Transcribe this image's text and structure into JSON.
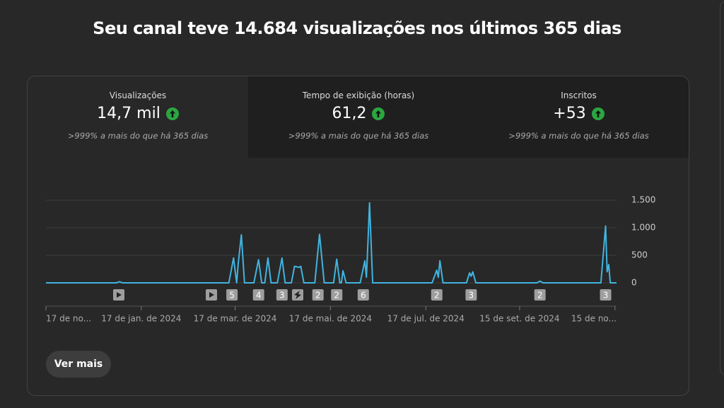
{
  "header": {
    "title": "Seu canal teve 14.684 visualizações nos últimos 365 dias"
  },
  "tabs": [
    {
      "label": "Visualizações",
      "value": "14,7 mil",
      "comparison": ">999% a mais do que há 365 dias"
    },
    {
      "label": "Tempo de exibição (horas)",
      "value": "61,2",
      "comparison": ">999% a mais do que há 365 dias"
    },
    {
      "label": "Inscritos",
      "value": "+53",
      "comparison": ">999% a mais do que há 365 dias"
    }
  ],
  "chart_data": {
    "type": "line",
    "color": "#41b4e0",
    "grid": true,
    "x": [
      0,
      45,
      47,
      49,
      117,
      120,
      122,
      123,
      125,
      127,
      133,
      136,
      138,
      140,
      142,
      144,
      148,
      151,
      153,
      157,
      159,
      162,
      163,
      165,
      172,
      175,
      178,
      184,
      186,
      188,
      189,
      190,
      192,
      201,
      204,
      205,
      206,
      207,
      209,
      211,
      247,
      250,
      251,
      252,
      254,
      269,
      271,
      272,
      273,
      275,
      314,
      316,
      318,
      355,
      358,
      359,
      360,
      361,
      365
    ],
    "values": [
      0,
      0,
      20,
      0,
      0,
      450,
      0,
      350,
      870,
      0,
      0,
      420,
      0,
      0,
      450,
      0,
      0,
      450,
      0,
      0,
      300,
      280,
      300,
      0,
      0,
      880,
      0,
      0,
      430,
      0,
      0,
      220,
      0,
      0,
      400,
      100,
      750,
      1450,
      0,
      0,
      0,
      230,
      100,
      400,
      0,
      0,
      180,
      120,
      200,
      0,
      0,
      30,
      0,
      0,
      1030,
      200,
      330,
      0,
      0
    ],
    "xlim": [
      0,
      365
    ],
    "xticks": [
      {
        "value": 0,
        "label": "17 de no..."
      },
      {
        "value": 61,
        "label": "17 de jan. de 2024"
      },
      {
        "value": 121,
        "label": "17 de mar. de 2024"
      },
      {
        "value": 182,
        "label": "17 de mai. de 2024"
      },
      {
        "value": 243,
        "label": "17 de jul. de 2024"
      },
      {
        "value": 303,
        "label": "15 de set. de 2024"
      },
      {
        "value": 364,
        "label": "15 de no..."
      }
    ],
    "ylim": [
      0,
      1500
    ],
    "yticks": [
      0,
      500,
      {
        "value": 1000,
        "label": "1.000"
      },
      {
        "value": 1500,
        "label": "1.500"
      }
    ],
    "markers": [
      {
        "x": 119,
        "label": "5"
      },
      {
        "x": 136,
        "label": "4"
      },
      {
        "x": 151,
        "label": "3"
      },
      {
        "x": 174,
        "label": "2"
      },
      {
        "x": 186,
        "label": "2"
      },
      {
        "x": 203,
        "label": "6"
      },
      {
        "x": 250,
        "label": "2"
      },
      {
        "x": 272,
        "label": "3"
      },
      {
        "x": 316,
        "label": "2"
      },
      {
        "x": 358,
        "label": "3"
      }
    ]
  },
  "button": {
    "label": "Ver mais"
  }
}
